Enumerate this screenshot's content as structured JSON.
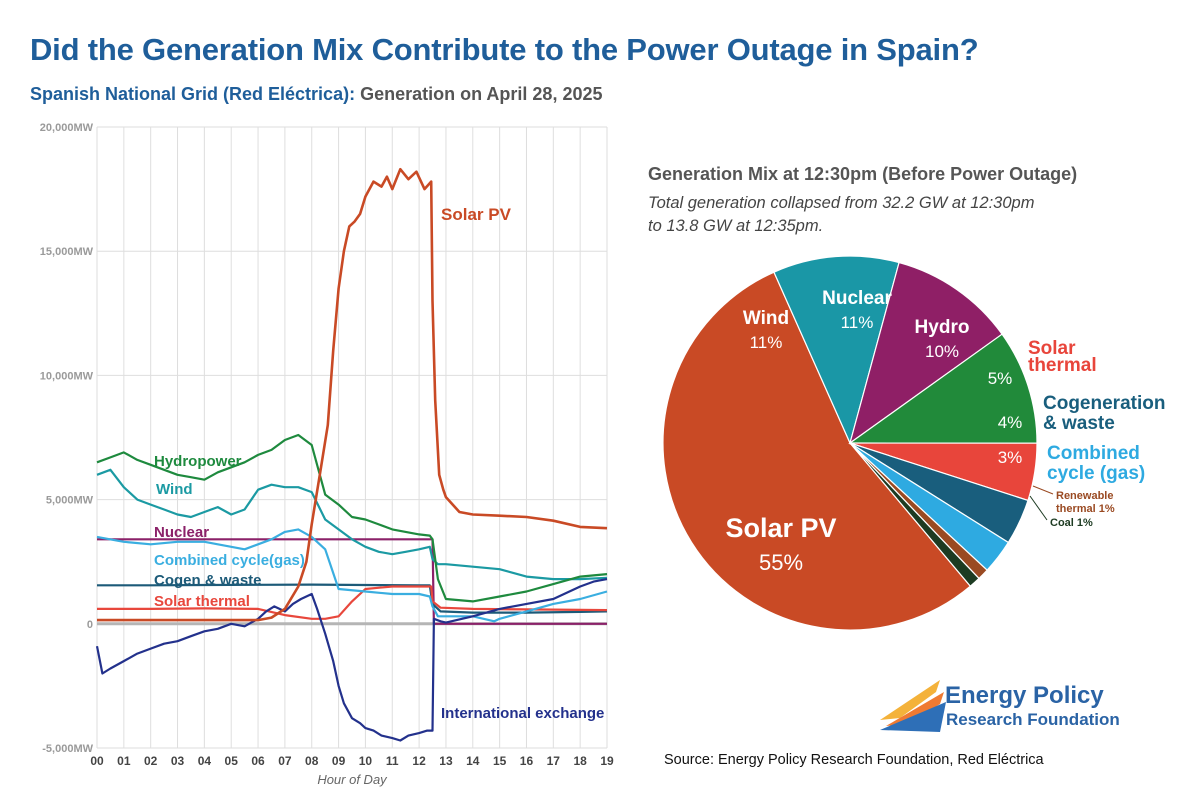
{
  "header": {
    "title": "Did the Generation Mix Contribute to the Power Outage in Spain?",
    "subtitle_prefix": "Spanish National Grid (Red Eléctrica):",
    "subtitle_rest": " Generation on April 28, 2025"
  },
  "pie_header": {
    "title": "Generation Mix at 12:30pm (Before Power Outage)",
    "note_line1": "Total generation collapsed from 32.2 GW at 12:30pm",
    "note_line2": "to 13.8 GW at 12:35pm."
  },
  "footer": {
    "logo_line1": "Energy Policy",
    "logo_line2": "Research Foundation",
    "source": "Source: Energy Policy Research Foundation, Red Eléctrica"
  },
  "chart_data": [
    {
      "type": "line",
      "title": "Spanish National Grid (Red Eléctrica): Generation on April 28, 2025",
      "xlabel": "Hour of Day",
      "ylabel": "",
      "xlim": [
        0,
        19
      ],
      "ylim": [
        -5000,
        20000
      ],
      "x_ticks": [
        "00",
        "01",
        "02",
        "03",
        "04",
        "05",
        "06",
        "07",
        "08",
        "09",
        "10",
        "11",
        "12",
        "13",
        "14",
        "15",
        "16",
        "17",
        "18",
        "19"
      ],
      "y_ticks": [
        {
          "value": 20000,
          "label": "20,000MW"
        },
        {
          "value": 15000,
          "label": "15,000MW"
        },
        {
          "value": 10000,
          "label": "10,000MW"
        },
        {
          "value": 5000,
          "label": "5,000MW"
        },
        {
          "value": 0,
          "label": "0"
        },
        {
          "value": -5000,
          "label": "-5,000MW"
        }
      ],
      "grid": true,
      "series": [
        {
          "name": "Solar PV",
          "label": "Solar PV",
          "color": "#c94a25",
          "x": [
            0,
            6,
            6.5,
            7,
            7.5,
            7.8,
            8,
            8.3,
            8.6,
            8.8,
            9,
            9.2,
            9.4,
            9.6,
            9.8,
            10,
            10.3,
            10.6,
            10.8,
            11,
            11.3,
            11.6,
            11.9,
            12.2,
            12.45,
            12.5,
            12.6,
            12.75,
            12.9,
            13,
            13.5,
            14,
            15,
            16,
            17,
            18,
            19
          ],
          "y": [
            150,
            150,
            250,
            600,
            1500,
            2500,
            4000,
            6000,
            8000,
            11000,
            13500,
            15000,
            16000,
            16200,
            16500,
            17200,
            17800,
            17600,
            18000,
            17500,
            18300,
            17900,
            18200,
            17500,
            17800,
            13000,
            9000,
            6000,
            5400,
            5100,
            4500,
            4400,
            4350,
            4300,
            4150,
            3900,
            3850
          ]
        },
        {
          "name": "Hydropower",
          "label": "Hydropower",
          "color": "#1e8a3e",
          "x": [
            0,
            0.5,
            1,
            1.5,
            2,
            2.5,
            3,
            3.5,
            4,
            4.5,
            5,
            5.5,
            6,
            6.5,
            7,
            7.5,
            8,
            8.5,
            9,
            9.5,
            10,
            10.5,
            11,
            11.5,
            12,
            12.4,
            12.5,
            12.7,
            13,
            14,
            15,
            16,
            17,
            18,
            19
          ],
          "y": [
            6500,
            6700,
            6900,
            6600,
            6400,
            6200,
            6000,
            5900,
            5800,
            6100,
            6300,
            6500,
            6800,
            7000,
            7400,
            7600,
            7200,
            5200,
            4800,
            4300,
            4200,
            4000,
            3800,
            3700,
            3600,
            3550,
            3400,
            1800,
            1000,
            900,
            1100,
            1300,
            1600,
            1900,
            2000
          ]
        },
        {
          "name": "Wind",
          "label": "Wind",
          "color": "#1b9aa3",
          "x": [
            0,
            0.5,
            1,
            1.5,
            2,
            2.5,
            3,
            3.5,
            4,
            4.5,
            5,
            5.5,
            6,
            6.5,
            7,
            7.5,
            8,
            8.5,
            9,
            9.5,
            10,
            10.5,
            11,
            11.5,
            12,
            12.4,
            12.5,
            12.7,
            13,
            14,
            15,
            16,
            17,
            18,
            19
          ],
          "y": [
            6000,
            6200,
            5500,
            5000,
            4800,
            4600,
            4400,
            4300,
            4500,
            4700,
            4400,
            4600,
            5400,
            5600,
            5500,
            5500,
            5300,
            4200,
            3800,
            3400,
            3100,
            2900,
            2800,
            2900,
            3000,
            3100,
            2600,
            2400,
            2400,
            2300,
            2200,
            1900,
            1800,
            1800,
            1850
          ]
        },
        {
          "name": "Nuclear",
          "label": "Nuclear",
          "color": "#8b2169",
          "x": [
            0,
            12.5,
            12.55,
            19
          ],
          "y": [
            3400,
            3400,
            0,
            0
          ]
        },
        {
          "name": "Combined cycle (gas)",
          "label": "Combined cycle(gas)",
          "color": "#3aaee0",
          "x": [
            0,
            1,
            2,
            3,
            4,
            5,
            5.5,
            6,
            6.5,
            7,
            7.5,
            8,
            8.5,
            9,
            10,
            11,
            12,
            12.4,
            12.5,
            12.7,
            13,
            14,
            14.8,
            15,
            16,
            17,
            18,
            19
          ],
          "y": [
            3500,
            3300,
            3200,
            3300,
            3300,
            3100,
            3000,
            3200,
            3400,
            3700,
            3800,
            3500,
            3000,
            1400,
            1300,
            1200,
            1200,
            1100,
            700,
            300,
            300,
            300,
            100,
            200,
            500,
            800,
            1000,
            1300
          ]
        },
        {
          "name": "Cogen & waste",
          "label": "Cogen & waste",
          "color": "#1c5a78",
          "x": [
            0,
            2,
            4,
            6,
            8,
            10,
            12,
            12.4,
            12.5,
            12.8,
            14,
            16,
            18,
            19
          ],
          "y": [
            1550,
            1550,
            1560,
            1570,
            1580,
            1560,
            1550,
            1550,
            800,
            500,
            450,
            450,
            480,
            500
          ]
        },
        {
          "name": "Solar thermal",
          "label": "Solar thermal",
          "color": "#e8473c",
          "x": [
            0,
            2,
            4,
            6,
            7,
            8,
            8.5,
            9,
            9.5,
            10,
            11,
            12,
            12.45,
            12.5,
            12.8,
            14,
            16,
            18,
            19
          ],
          "y": [
            600,
            600,
            620,
            600,
            350,
            200,
            200,
            300,
            900,
            1400,
            1500,
            1500,
            1500,
            900,
            650,
            600,
            580,
            560,
            550
          ]
        },
        {
          "name": "International exchange",
          "label": "International exchange",
          "color": "#23318c",
          "x": [
            0,
            0.2,
            0.5,
            1,
            1.5,
            2,
            2.5,
            3,
            3.5,
            4,
            4.5,
            5,
            5.5,
            6,
            6.3,
            6.6,
            7,
            7.3,
            7.6,
            8,
            8.2,
            8.5,
            8.8,
            9,
            9.2,
            9.5,
            9.8,
            10,
            10.3,
            10.6,
            11,
            11.3,
            11.6,
            12,
            12.3,
            12.5,
            12.55,
            12.8,
            13,
            14,
            15,
            16,
            17,
            18,
            18.5,
            19
          ],
          "y": [
            -900,
            -2000,
            -1800,
            -1500,
            -1200,
            -1000,
            -800,
            -700,
            -500,
            -300,
            -200,
            0,
            -100,
            200,
            500,
            700,
            500,
            800,
            1000,
            1200,
            600,
            -400,
            -1500,
            -2500,
            -3200,
            -3800,
            -4000,
            -4200,
            -4300,
            -4500,
            -4600,
            -4700,
            -4500,
            -4400,
            -4300,
            -4300,
            200,
            100,
            50,
            300,
            600,
            800,
            1000,
            1500,
            1700,
            1800
          ]
        },
        {
          "name": "Zero line",
          "label": "",
          "color": "#b5b5b5",
          "x": [
            0,
            19
          ],
          "y": [
            0,
            0
          ]
        }
      ]
    },
    {
      "type": "pie",
      "title": "Generation Mix at 12:30pm (Before Power Outage)",
      "slices": [
        {
          "label": "Solar PV",
          "value": 55,
          "display": "55%",
          "color": "#c94a25"
        },
        {
          "label": "Wind",
          "value": 11,
          "display": "11%",
          "color": "#1a97a6"
        },
        {
          "label": "Nuclear",
          "value": 11,
          "display": "11%",
          "color": "#8f1f66"
        },
        {
          "label": "Hydro",
          "value": 10,
          "display": "10%",
          "color": "#218a3a"
        },
        {
          "label": "Solar thermal",
          "value": 5,
          "display": "5%",
          "color": "#e8453b"
        },
        {
          "label": "Cogeneration & waste",
          "value": 4,
          "display": "4%",
          "color": "#195e7d"
        },
        {
          "label": "Combined cycle (gas)",
          "value": 3,
          "display": "3%",
          "color": "#2eaae1"
        },
        {
          "label": "Renewable thermal",
          "value": 1,
          "display": "1%",
          "color": "#9a4a22"
        },
        {
          "label": "Coal",
          "value": 1,
          "display": "1%",
          "color": "#1d3b22"
        }
      ]
    }
  ]
}
